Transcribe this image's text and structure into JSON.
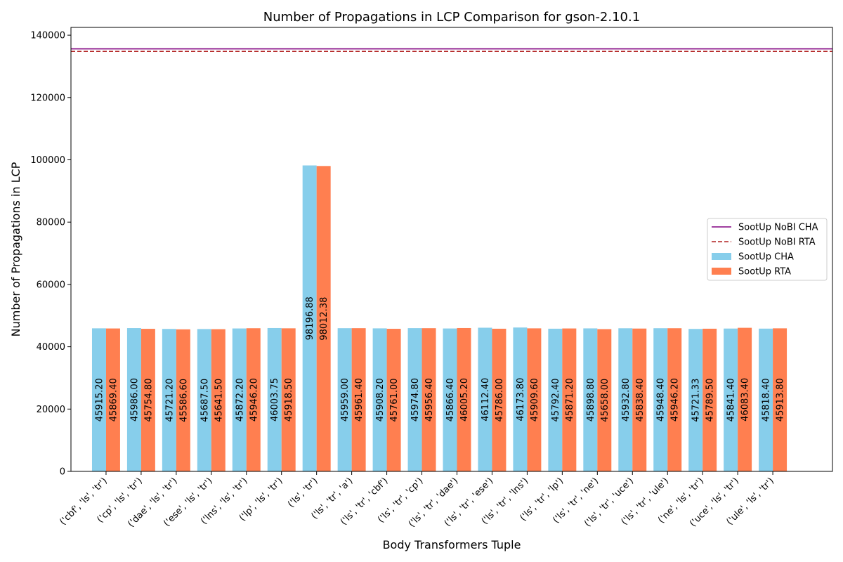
{
  "chart_data": {
    "type": "bar",
    "title": "Number of Propagations in LCP Comparison for gson-2.10.1",
    "xlabel": "Body Transformers Tuple",
    "ylabel": "Number of Propagations in LCP",
    "ylim": [
      0,
      142500
    ],
    "yticks": [
      0,
      20000,
      40000,
      60000,
      80000,
      100000,
      120000,
      140000
    ],
    "categories": [
      "('cbf', 'ls', 'tr')",
      "('cp', 'ls', 'tr')",
      "('dae', 'ls', 'tr')",
      "('ese', 'ls', 'tr')",
      "('lns', 'ls', 'tr')",
      "('lp', 'ls', 'tr')",
      "('ls', 'tr')",
      "('ls', 'tr', 'a')",
      "('ls', 'tr', 'cbf')",
      "('ls', 'tr', 'cp')",
      "('ls', 'tr', 'dae')",
      "('ls', 'tr', 'ese')",
      "('ls', 'tr', 'lns')",
      "('ls', 'tr', 'lp')",
      "('ls', 'tr', 'ne')",
      "('ls', 'tr', 'uce')",
      "('ls', 'tr', 'ule')",
      "('ne', 'ls', 'tr')",
      "('uce', 'ls', 'tr')",
      "('ule', 'ls', 'tr')"
    ],
    "series": [
      {
        "name": "SootUp CHA",
        "color": "#87CEEB",
        "values": [
          45915.2,
          45986.0,
          45721.2,
          45687.5,
          45872.2,
          46003.75,
          98196.88,
          45959.0,
          45908.2,
          45974.8,
          45866.4,
          46112.4,
          46173.8,
          45792.4,
          45898.8,
          45932.8,
          45948.4,
          45721.33,
          45841.4,
          45818.4
        ],
        "labels": [
          "45915.20",
          "45986.00",
          "45721.20",
          "45687.50",
          "45872.20",
          "46003.75",
          "98196.88",
          "45959.00",
          "45908.20",
          "45974.80",
          "45866.40",
          "46112.40",
          "46173.80",
          "45792.40",
          "45898.80",
          "45932.80",
          "45948.40",
          "45721.33",
          "45841.40",
          "45818.40"
        ]
      },
      {
        "name": "SootUp RTA",
        "color": "#FF7F50",
        "values": [
          45869.4,
          45754.8,
          45586.6,
          45641.5,
          45946.2,
          45918.5,
          98012.38,
          45961.4,
          45761.0,
          45956.4,
          46005.2,
          45786.0,
          45909.6,
          45871.2,
          45658.0,
          45838.4,
          45946.2,
          45789.5,
          46083.4,
          45913.8
        ],
        "labels": [
          "45869.40",
          "45754.80",
          "45586.60",
          "45641.50",
          "45946.20",
          "45918.50",
          "98012.38",
          "45961.40",
          "45761.00",
          "45956.40",
          "46005.20",
          "45786.00",
          "45909.60",
          "45871.20",
          "45658.00",
          "45838.40",
          "45946.20",
          "45789.50",
          "46083.40",
          "45913.80"
        ]
      }
    ],
    "reference_lines": [
      {
        "name": "SootUp NoBI CHA",
        "value": 135600,
        "color": "#800080",
        "style": "solid"
      },
      {
        "name": "SootUp NoBI RTA",
        "value": 134800,
        "color": "#B22222",
        "style": "dashed"
      }
    ],
    "legend_position": "right",
    "grid": false
  }
}
